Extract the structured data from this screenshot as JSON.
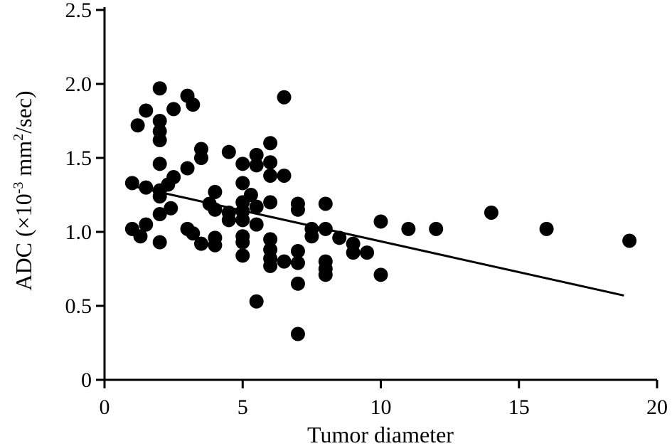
{
  "chart_data": {
    "type": "scatter",
    "title": "",
    "xlabel": "Tumor diameter",
    "ylabel": {
      "main": "ADC (×10",
      "exp1": "-3",
      "mid": " mm",
      "exp2": "2",
      "end": "/sec)"
    },
    "xlim": [
      0,
      20
    ],
    "ylim": [
      0,
      2.5
    ],
    "x_ticks": [
      0,
      5,
      10,
      15,
      20
    ],
    "x_tick_labels": [
      "0",
      "5",
      "10",
      "15",
      "20"
    ],
    "y_ticks": [
      0,
      0.5,
      1.0,
      1.5,
      2.0,
      2.5
    ],
    "y_tick_labels": [
      "0",
      "0.5",
      "1.0",
      "1.5",
      "2.0",
      "2.5"
    ],
    "grid": false,
    "colors": {
      "points": "#000000",
      "line": "#000000",
      "axes": "#000000"
    },
    "regression_line": {
      "x": [
        1.0,
        18.8
      ],
      "y": [
        1.31,
        0.57
      ]
    },
    "points": [
      {
        "x": 1.0,
        "y": 1.33
      },
      {
        "x": 1.0,
        "y": 1.02
      },
      {
        "x": 1.2,
        "y": 1.72
      },
      {
        "x": 1.3,
        "y": 0.97
      },
      {
        "x": 1.5,
        "y": 1.05
      },
      {
        "x": 1.5,
        "y": 1.3
      },
      {
        "x": 1.5,
        "y": 1.82
      },
      {
        "x": 2.0,
        "y": 1.97
      },
      {
        "x": 2.0,
        "y": 1.75
      },
      {
        "x": 2.0,
        "y": 1.68
      },
      {
        "x": 2.0,
        "y": 1.62
      },
      {
        "x": 2.0,
        "y": 1.46
      },
      {
        "x": 2.0,
        "y": 1.28
      },
      {
        "x": 2.0,
        "y": 1.24
      },
      {
        "x": 2.0,
        "y": 1.12
      },
      {
        "x": 2.0,
        "y": 0.93
      },
      {
        "x": 2.3,
        "y": 1.32
      },
      {
        "x": 2.4,
        "y": 1.16
      },
      {
        "x": 2.5,
        "y": 1.83
      },
      {
        "x": 2.5,
        "y": 1.37
      },
      {
        "x": 3.0,
        "y": 1.92
      },
      {
        "x": 3.0,
        "y": 1.43
      },
      {
        "x": 3.0,
        "y": 1.02
      },
      {
        "x": 3.2,
        "y": 1.86
      },
      {
        "x": 3.2,
        "y": 0.99
      },
      {
        "x": 3.5,
        "y": 1.56
      },
      {
        "x": 3.5,
        "y": 1.5
      },
      {
        "x": 3.5,
        "y": 0.92
      },
      {
        "x": 3.8,
        "y": 1.19
      },
      {
        "x": 4.0,
        "y": 1.27
      },
      {
        "x": 4.0,
        "y": 1.15
      },
      {
        "x": 4.0,
        "y": 0.96
      },
      {
        "x": 4.0,
        "y": 0.91
      },
      {
        "x": 4.5,
        "y": 1.54
      },
      {
        "x": 4.5,
        "y": 1.13
      },
      {
        "x": 4.5,
        "y": 1.08
      },
      {
        "x": 5.0,
        "y": 1.46
      },
      {
        "x": 5.0,
        "y": 1.33
      },
      {
        "x": 5.0,
        "y": 1.2
      },
      {
        "x": 5.0,
        "y": 1.14
      },
      {
        "x": 5.0,
        "y": 1.08
      },
      {
        "x": 5.0,
        "y": 0.97
      },
      {
        "x": 5.0,
        "y": 0.93
      },
      {
        "x": 5.0,
        "y": 0.84
      },
      {
        "x": 5.3,
        "y": 1.25
      },
      {
        "x": 5.5,
        "y": 1.52
      },
      {
        "x": 5.5,
        "y": 1.45
      },
      {
        "x": 5.5,
        "y": 1.17
      },
      {
        "x": 5.5,
        "y": 1.05
      },
      {
        "x": 5.5,
        "y": 0.53
      },
      {
        "x": 6.0,
        "y": 1.6
      },
      {
        "x": 6.0,
        "y": 1.47
      },
      {
        "x": 6.0,
        "y": 1.38
      },
      {
        "x": 6.0,
        "y": 1.2
      },
      {
        "x": 6.0,
        "y": 0.95
      },
      {
        "x": 6.0,
        "y": 0.88
      },
      {
        "x": 6.0,
        "y": 0.82
      },
      {
        "x": 6.0,
        "y": 0.77
      },
      {
        "x": 6.5,
        "y": 1.38
      },
      {
        "x": 6.5,
        "y": 0.8
      },
      {
        "x": 7.0,
        "y": 1.19
      },
      {
        "x": 7.0,
        "y": 1.15
      },
      {
        "x": 7.0,
        "y": 0.87
      },
      {
        "x": 7.0,
        "y": 0.79
      },
      {
        "x": 7.0,
        "y": 0.65
      },
      {
        "x": 7.0,
        "y": 0.31
      },
      {
        "x": 7.5,
        "y": 1.02
      },
      {
        "x": 7.5,
        "y": 0.97
      },
      {
        "x": 8.0,
        "y": 1.19
      },
      {
        "x": 8.0,
        "y": 1.02
      },
      {
        "x": 8.0,
        "y": 0.8
      },
      {
        "x": 8.0,
        "y": 0.75
      },
      {
        "x": 8.0,
        "y": 0.71
      },
      {
        "x": 8.5,
        "y": 0.96
      },
      {
        "x": 9.0,
        "y": 0.92
      },
      {
        "x": 9.0,
        "y": 0.86
      },
      {
        "x": 9.5,
        "y": 0.86
      },
      {
        "x": 10.0,
        "y": 1.07
      },
      {
        "x": 10.0,
        "y": 0.71
      },
      {
        "x": 11.0,
        "y": 1.02
      },
      {
        "x": 12.0,
        "y": 1.02
      },
      {
        "x": 14.0,
        "y": 1.13
      },
      {
        "x": 16.0,
        "y": 1.02
      },
      {
        "x": 19.0,
        "y": 0.94
      },
      {
        "x": 6.5,
        "y": 1.91
      }
    ]
  }
}
